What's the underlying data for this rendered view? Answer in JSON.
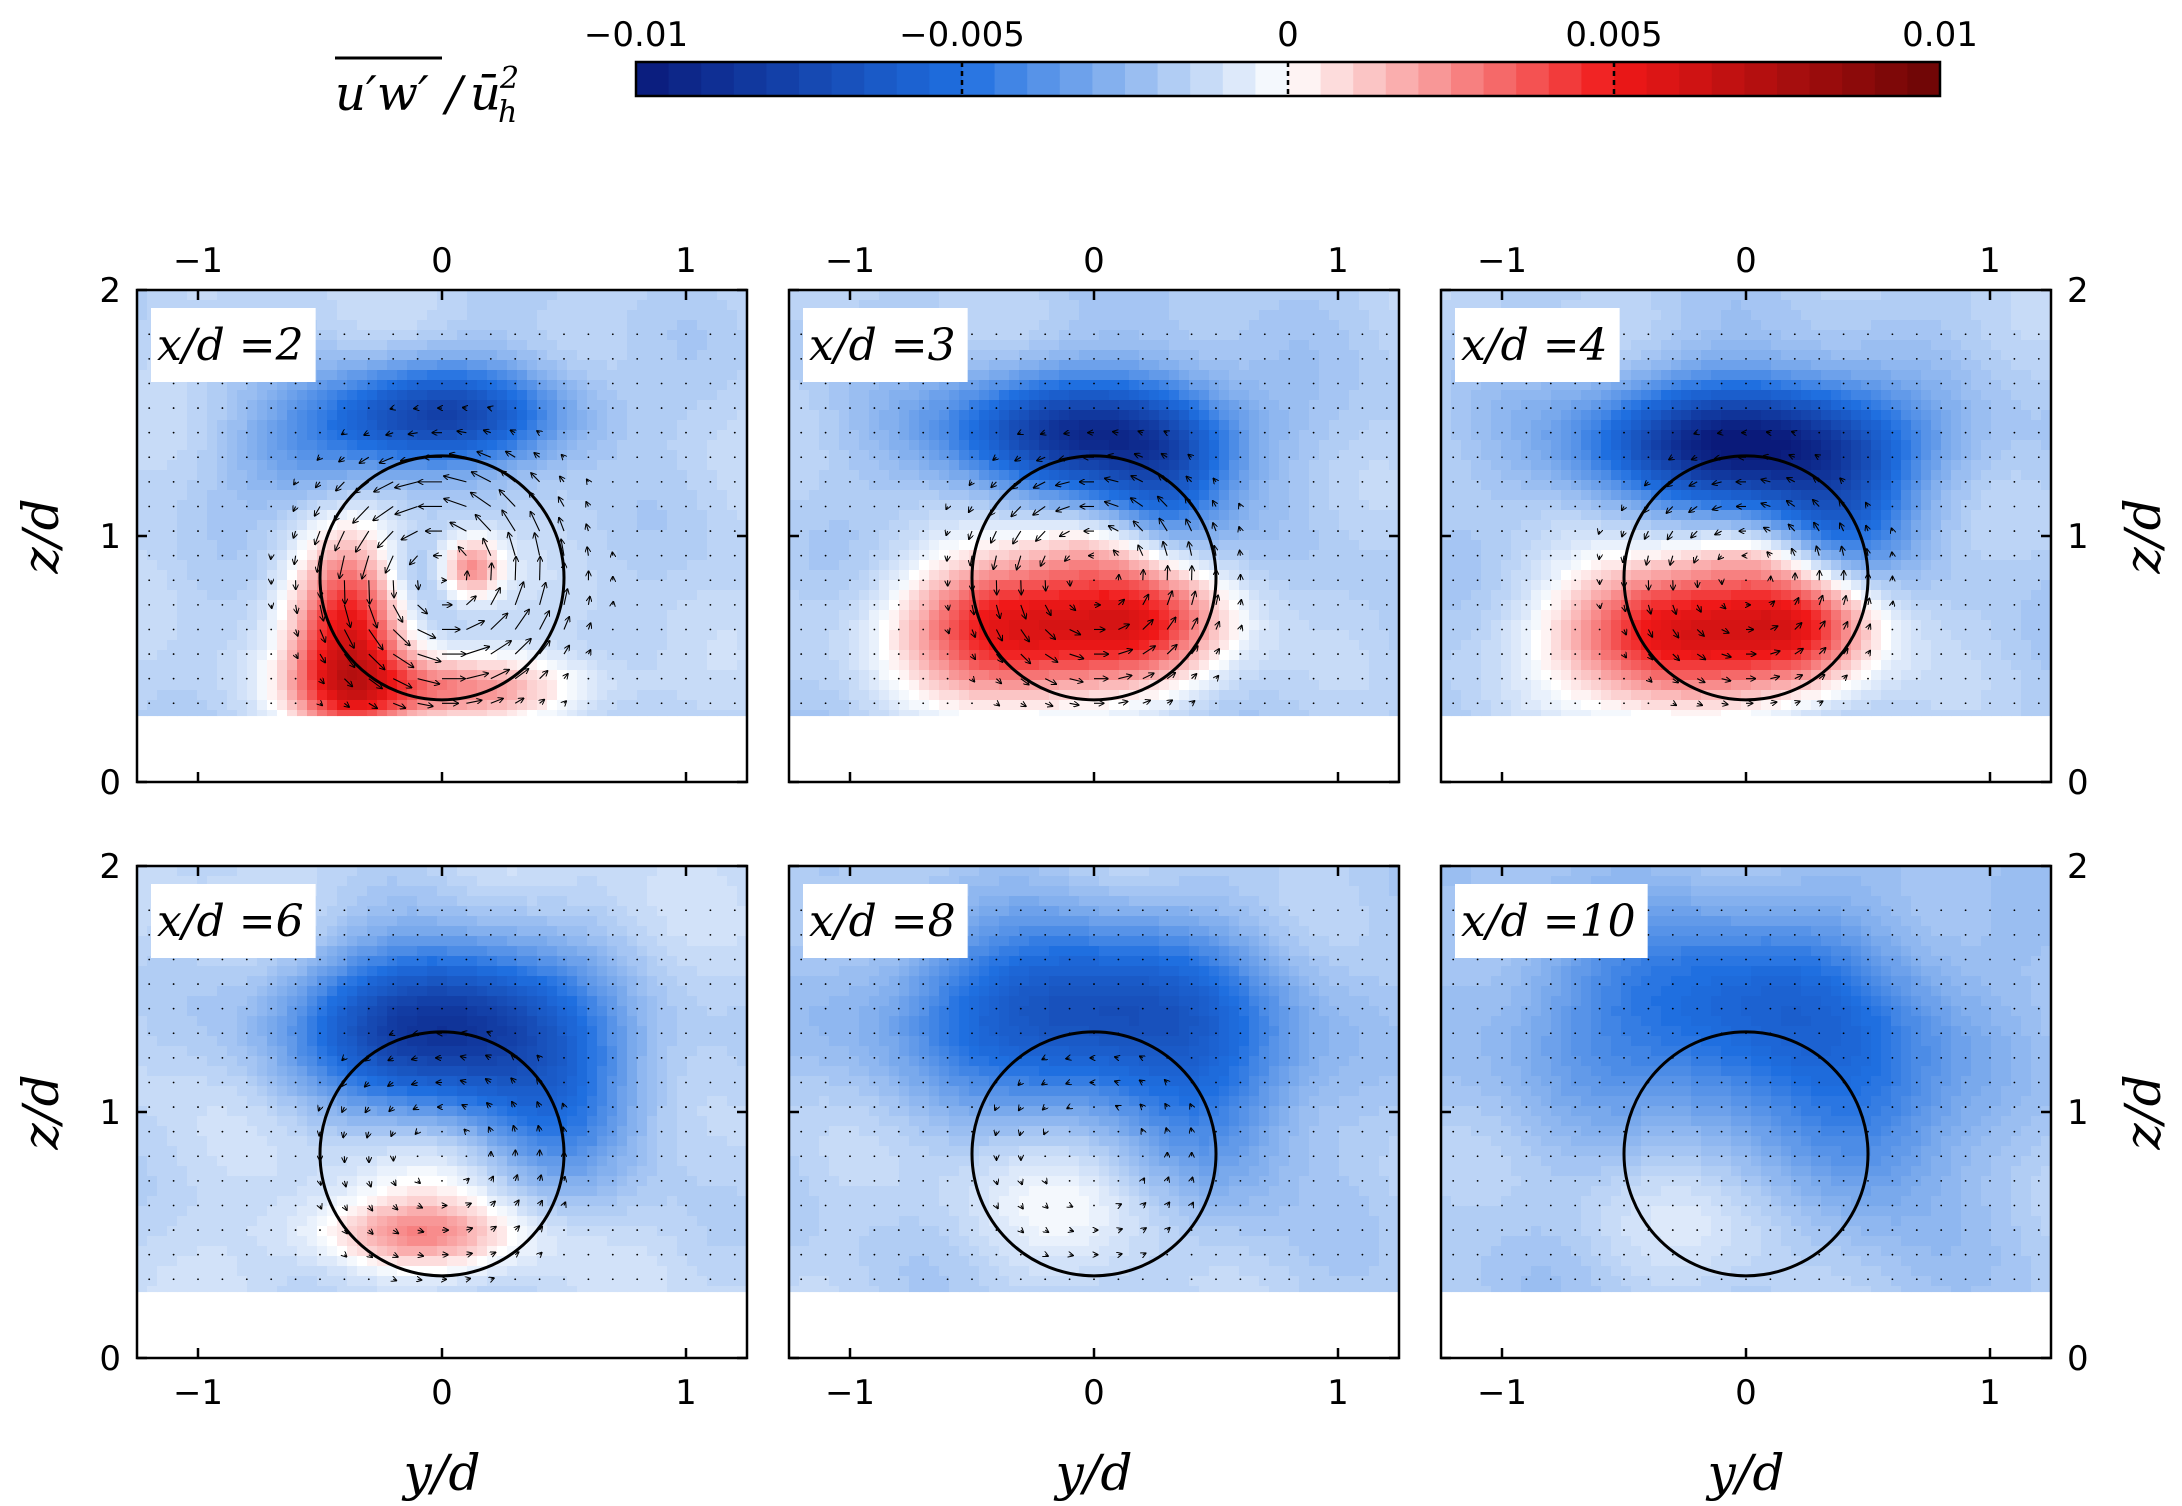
{
  "chart_data": {
    "type": "heatmap",
    "colorbar": {
      "label_main": "u′w′",
      "label_denom": "ū",
      "label_denom_sub": "h",
      "label_denom_sup": "2",
      "min": -0.01,
      "max": 0.01,
      "ticks": [
        -0.01,
        -0.005,
        0,
        0.005,
        0.01
      ],
      "tick_labels": [
        "−0.01",
        "−0.005",
        "0",
        "0.005",
        "0.01"
      ],
      "neg_color_dark": "#0a1a7a",
      "neg_color_mid": "#1f6fe0",
      "zero_color": "#ffffff",
      "pos_color_mid": "#f01818",
      "pos_color_dark": "#6a0505"
    },
    "xlim": [
      -1.25,
      1.25
    ],
    "ylim": [
      0,
      2
    ],
    "xticks": [
      -1,
      0,
      1
    ],
    "yticks": [
      0,
      1,
      2
    ],
    "xtick_labels": [
      "−1",
      "0",
      "1"
    ],
    "ytick_labels": [
      "0",
      "1",
      "2"
    ],
    "xlabel": "y/d",
    "ylabel": "z/d",
    "data_floor_z": 0.27,
    "rotor": {
      "center_y": 0,
      "center_z": 0.83,
      "radius": 0.5
    },
    "panels": [
      {
        "label": "x/d =2",
        "background": -0.0015,
        "blobs": [
          {
            "y": 0.0,
            "z": 1.5,
            "sy": 0.35,
            "sz": 0.14,
            "value": -0.0058
          },
          {
            "y": -0.5,
            "z": 1.3,
            "sy": 0.25,
            "sz": 0.15,
            "value": -0.0018
          },
          {
            "y": -0.38,
            "z": 0.58,
            "sy": 0.16,
            "sz": 0.28,
            "value": 0.0072
          },
          {
            "y": 0.0,
            "z": 0.38,
            "sy": 0.38,
            "sz": 0.1,
            "value": 0.0042
          },
          {
            "y": 0.12,
            "z": 0.87,
            "sy": 0.09,
            "sz": 0.09,
            "value": 0.004
          },
          {
            "y": -0.12,
            "z": 0.85,
            "sy": 0.12,
            "sz": 0.12,
            "value": -0.0012
          }
        ],
        "swirl": 1.0
      },
      {
        "label": "x/d =3",
        "background": -0.0017,
        "blobs": [
          {
            "y": -0.05,
            "z": 1.42,
            "sy": 0.38,
            "sz": 0.16,
            "value": -0.0068
          },
          {
            "y": 0.3,
            "z": 1.2,
            "sy": 0.18,
            "sz": 0.22,
            "value": -0.0032
          },
          {
            "y": -0.35,
            "z": 0.62,
            "sy": 0.3,
            "sz": 0.2,
            "value": 0.0072
          },
          {
            "y": 0.2,
            "z": 0.65,
            "sy": 0.25,
            "sz": 0.18,
            "value": 0.0058
          },
          {
            "y": 0.0,
            "z": 0.95,
            "sy": 0.2,
            "sz": 0.1,
            "value": 0.0015
          }
        ],
        "swirl": 0.6
      },
      {
        "label": "x/d =4",
        "background": -0.0017,
        "blobs": [
          {
            "y": 0.0,
            "z": 1.38,
            "sy": 0.42,
            "sz": 0.17,
            "value": -0.0085
          },
          {
            "y": 0.38,
            "z": 1.05,
            "sy": 0.2,
            "sz": 0.22,
            "value": -0.0035
          },
          {
            "y": -0.3,
            "z": 0.6,
            "sy": 0.32,
            "sz": 0.2,
            "value": 0.0075
          },
          {
            "y": 0.25,
            "z": 0.65,
            "sy": 0.22,
            "sz": 0.18,
            "value": 0.0055
          },
          {
            "y": 0.0,
            "z": 0.92,
            "sy": 0.18,
            "sz": 0.08,
            "value": 0.0012
          }
        ],
        "swirl": 0.4
      },
      {
        "label": "x/d =6",
        "background": -0.0013,
        "blobs": [
          {
            "y": 0.0,
            "z": 1.35,
            "sy": 0.4,
            "sz": 0.22,
            "value": -0.0075
          },
          {
            "y": 0.5,
            "z": 1.0,
            "sy": 0.25,
            "sz": 0.25,
            "value": -0.0028
          },
          {
            "y": -0.1,
            "z": 0.5,
            "sy": 0.3,
            "sz": 0.1,
            "value": 0.0035
          },
          {
            "y": 0.0,
            "z": 0.75,
            "sy": 0.3,
            "sz": 0.15,
            "value": 0.0009
          }
        ],
        "swirl": 0.25
      },
      {
        "label": "x/d =8",
        "background": -0.0016,
        "blobs": [
          {
            "y": -0.05,
            "z": 1.4,
            "sy": 0.5,
            "sz": 0.25,
            "value": -0.0055
          },
          {
            "y": 0.5,
            "z": 1.0,
            "sy": 0.25,
            "sz": 0.3,
            "value": -0.0022
          },
          {
            "y": -0.05,
            "z": 0.65,
            "sy": 0.35,
            "sz": 0.2,
            "value": 0.0012
          }
        ],
        "swirl": 0.15
      },
      {
        "label": "x/d =10",
        "background": -0.0018,
        "blobs": [
          {
            "y": -0.05,
            "z": 1.4,
            "sy": 0.55,
            "sz": 0.3,
            "value": -0.0038
          },
          {
            "y": 0.5,
            "z": 0.95,
            "sy": 0.25,
            "sz": 0.3,
            "value": -0.0022
          },
          {
            "y": -0.1,
            "z": 0.6,
            "sy": 0.35,
            "sz": 0.2,
            "value": 0.0009
          }
        ],
        "swirl": 0.1
      }
    ]
  }
}
